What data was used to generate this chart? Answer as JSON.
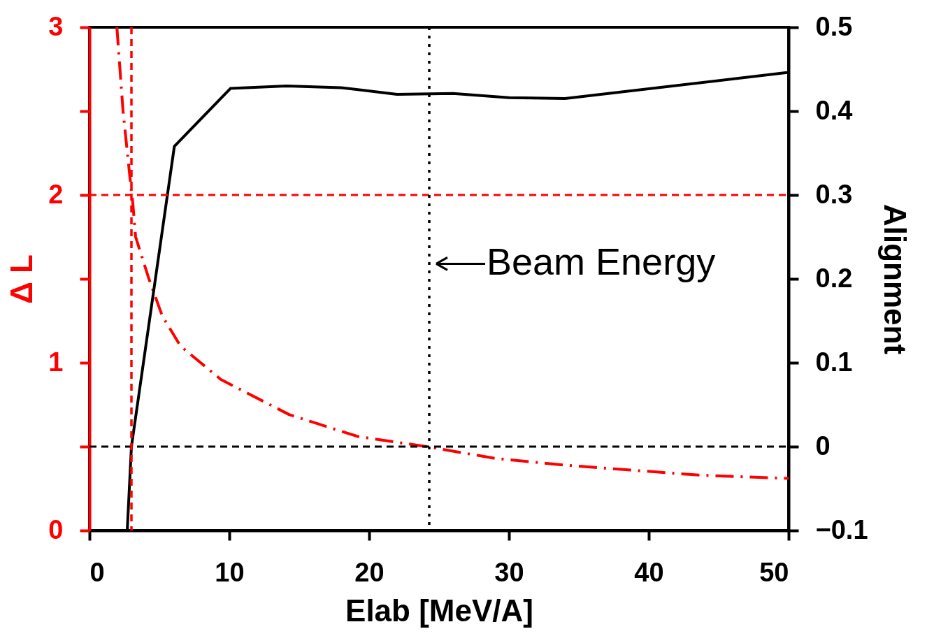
{
  "chart_data": {
    "type": "line",
    "xlabel": "Elab [MeV/A]",
    "ylabel": "Δ L",
    "y2label": "Alignment",
    "xlim": [
      0,
      50
    ],
    "xticks": [
      0,
      10,
      20,
      30,
      40,
      50
    ],
    "ylim": [
      0,
      3
    ],
    "yticks": [
      0,
      {
        "value": 0.5,
        "label": null
      },
      1,
      {
        "value": 1.5,
        "label": null
      },
      2,
      {
        "value": 2.5,
        "label": null
      },
      3
    ],
    "y2lim": [
      -0.1,
      0.5
    ],
    "y2ticks": [
      -0.1,
      0,
      0.1,
      0.2,
      0.3,
      0.4,
      0.5
    ],
    "series": [
      {
        "color": "#ff0000",
        "line_style": "dashed",
        "x": [
          1.96,
          2.4,
          2.9,
          3.1,
          3.3,
          4.25,
          5.2,
          6.5,
          9.4,
          14.3,
          19.2,
          24.1,
          29,
          33.9,
          38.7,
          43.6,
          50
        ],
        "values": [
          3.0,
          2.5,
          2.1,
          1.95,
          1.75,
          1.5,
          1.28,
          1.1,
          0.9,
          0.69,
          0.56,
          0.5,
          0.43,
          0.39,
          0.36,
          0.33,
          0.31
        ]
      },
      {
        "color": "#000000",
        "line_style": "solid",
        "axis": "y2",
        "x": [
          2.7,
          3.0,
          6.07,
          10.08,
          14.1,
          18,
          22,
          26,
          30,
          34,
          49.9
        ],
        "values": [
          -0.1,
          0.0,
          0.358,
          0.427,
          0.43,
          0.428,
          0.42,
          0.421,
          0.416,
          0.415,
          0.446
        ]
      }
    ],
    "ref_lines": [
      {
        "axis": "y",
        "value": 2,
        "color": "#ff0000",
        "line_style": "dashed"
      },
      {
        "axis": "y2",
        "value": 0,
        "color": "#000000",
        "line_style": "dashed"
      },
      {
        "axis": "x",
        "value": 3,
        "color": "#ff0000",
        "line_style": "dashed"
      },
      {
        "axis": "x",
        "value": 24.3,
        "color": "#000000",
        "line_style": "dotted"
      }
    ],
    "annotations": [
      {
        "text": "Beam Energy",
        "x": 24.3,
        "y": 1.59
      }
    ],
    "grid": false,
    "marker": "none"
  }
}
